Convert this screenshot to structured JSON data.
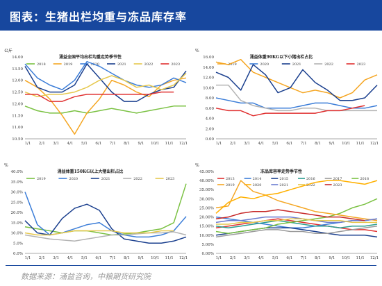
{
  "header": {
    "title": "图表：生猪出栏均重与冻品库存率"
  },
  "footer": {
    "source": "数据来源：涌益咨询，中粮期货研究院"
  },
  "chart_data": [
    {
      "type": "line",
      "title": "涌益全国平均出栏均重走势季节性",
      "unit": "公斤",
      "y_ticks": [
        "10.50",
        "11.00",
        "11.50",
        "12.00",
        "12.50",
        "13.00",
        "13.50",
        "14.00"
      ],
      "ylim": [
        105,
        140
      ],
      "x_labels": [
        "1/1",
        "2/1",
        "3/1",
        "4/1",
        "5/1",
        "6/1",
        "7/1",
        "8/1",
        "9/1",
        "10/1",
        "11/1",
        "12/1"
      ],
      "series": [
        {
          "name": "2018",
          "color": "#7ac142",
          "values": [
            119,
            117,
            116,
            116,
            117,
            116,
            117,
            118,
            117,
            116,
            117,
            118,
            119,
            119
          ]
        },
        {
          "name": "2019",
          "color": "#f5a623",
          "values": [
            130,
            127,
            122,
            115,
            107,
            116,
            122,
            130,
            128,
            125,
            123,
            128,
            130,
            131
          ]
        },
        {
          "name": "2020",
          "color": "#3b7dd8",
          "values": [
            137,
            131,
            128,
            126,
            130,
            138,
            136,
            133,
            130,
            128,
            127,
            128,
            131,
            129
          ]
        },
        {
          "name": "2021",
          "color": "#1a3f8e",
          "values": [
            136,
            127,
            125,
            125,
            128,
            137,
            131,
            125,
            121,
            121,
            124,
            126,
            127,
            134
          ]
        },
        {
          "name": "2022",
          "color": "#e6c84d",
          "values": [
            125,
            123,
            124,
            124,
            125,
            127,
            130,
            132,
            130,
            127,
            128,
            126,
            128,
            133
          ]
        },
        {
          "name": "2023",
          "color": "#e03030",
          "values": [
            124,
            124,
            121,
            121,
            123,
            124,
            124,
            124,
            124,
            124,
            124,
            125,
            125
          ]
        }
      ]
    },
    {
      "type": "line",
      "title": "涌益体重90KG以下小猪出栏占比",
      "unit": "%",
      "y_ticks": [
        "0.00",
        "2.00",
        "4.00",
        "6.00",
        "8.00",
        "10.00",
        "12.00",
        "14.00",
        "16.00"
      ],
      "ylim": [
        0,
        16
      ],
      "x_labels": [
        "1/1",
        "2/1",
        "3/1",
        "4/1",
        "5/1",
        "6/1",
        "7/1",
        "8/1",
        "9/1",
        "10/1",
        "11/1",
        "12/1"
      ],
      "series": [
        {
          "name": "2019",
          "color": "#f5a623",
          "values": [
            15.0,
            14.5,
            15.5,
            13.0,
            12.0,
            11.0,
            10.0,
            9.0,
            9.5,
            9.0,
            8.0,
            9.0,
            11.5,
            12.5
          ]
        },
        {
          "name": "2020",
          "color": "#3b7dd8",
          "values": [
            8.0,
            7.5,
            7.0,
            7.0,
            6.0,
            6.0,
            6.0,
            6.5,
            7.0,
            7.0,
            6.5,
            6.0,
            6.0,
            6.5
          ]
        },
        {
          "name": "2021",
          "color": "#1a3f8e",
          "values": [
            13.0,
            12.0,
            9.5,
            14.5,
            12.5,
            9.0,
            10.0,
            13.5,
            11.0,
            9.5,
            7.5,
            7.5,
            8.0,
            10.5
          ]
        },
        {
          "name": "2022",
          "color": "#b3b3b3",
          "values": [
            10.5,
            10.5,
            7.5,
            6.5,
            6.0,
            5.5,
            5.5,
            6.0,
            6.0,
            5.5,
            5.5,
            5.5,
            5.5,
            5.5
          ]
        },
        {
          "name": "2023",
          "color": "#e03030",
          "values": [
            6.0,
            5.5,
            5.5,
            4.5,
            5.0,
            5.0,
            5.0,
            5.0,
            5.0,
            5.5,
            5.5,
            6.0,
            6.5
          ]
        }
      ]
    },
    {
      "type": "line",
      "title": "涌益体重150KG以上大猪出栏占比",
      "unit": "%",
      "y_ticks": [
        "0.0%",
        "5.0%",
        "10.0%",
        "15.0%",
        "20.0%",
        "25.0%",
        "30.0%",
        "35.0%",
        "40.0%"
      ],
      "ylim": [
        0,
        40
      ],
      "x_labels": [
        "1/1",
        "2/1",
        "3/1",
        "4/1",
        "5/1",
        "6/1",
        "7/1",
        "8/1",
        "9/1",
        "10/1",
        "11/1",
        "12/1"
      ],
      "legend": [
        "2019",
        "2020",
        "2021",
        "2022",
        "2023"
      ],
      "series": [
        {
          "name": "2019",
          "color": "#7ac142",
          "values": [
            13.0,
            12.0,
            11.0,
            10.0,
            11.0,
            11.0,
            10.0,
            9.0,
            9.5,
            10.0,
            11.0,
            12.0,
            15.0,
            34.0
          ]
        },
        {
          "name": "2020",
          "color": "#3b7dd8",
          "values": [
            30.0,
            14.0,
            9.0,
            10.0,
            12.0,
            14.0,
            15.0,
            11.0,
            9.0,
            8.0,
            8.0,
            9.0,
            11.0,
            18.0
          ]
        },
        {
          "name": "2021",
          "color": "#1a3f8e",
          "values": [
            16.0,
            10.0,
            9.0,
            17.0,
            22.0,
            24.0,
            21.0,
            12.0,
            7.0,
            6.0,
            5.0,
            5.0,
            6.0,
            8.0
          ]
        },
        {
          "name": "2022",
          "color": "#b3b3b3",
          "values": [
            9.0,
            8.0,
            7.0,
            6.5,
            6.0,
            7.0,
            8.0,
            9.0,
            9.0,
            9.5,
            10.0,
            10.0,
            10.5,
            9.0
          ]
        },
        {
          "name": "2023",
          "color": "#e6c84d",
          "values": [
            10.0,
            9.0,
            9.0,
            10.0,
            11.0,
            11.0,
            11.0,
            11.0,
            10.0,
            10.0,
            10.0,
            11.0,
            11.0
          ]
        }
      ]
    },
    {
      "type": "line",
      "title": "冻品库容率走势季节性",
      "unit": "%",
      "y_ticks": [
        "0.00%",
        "5.00%",
        "10.00%",
        "15.00%",
        "20.00%",
        "25.00%",
        "30.00%",
        "35.00%",
        "40.00%",
        "45.00%"
      ],
      "ylim": [
        0,
        45
      ],
      "x_labels": [
        "1/1",
        "2/1",
        "3/1",
        "4/1",
        "5/1",
        "6/1",
        "7/1",
        "8/1",
        "9/1",
        "10/1",
        "11/1",
        "12/1"
      ],
      "legend": [
        "2013",
        "2014",
        "2015",
        "2016",
        "2017",
        "2018",
        "2019",
        "2020",
        "2021",
        "2022",
        "2023"
      ],
      "series": [
        {
          "name": "2013",
          "color": "#e03030",
          "values": [
            14,
            15,
            16,
            17,
            18,
            19,
            18,
            17,
            16,
            15,
            14,
            13,
            13,
            12
          ]
        },
        {
          "name": "2014",
          "color": "#3b7dd8",
          "values": [
            20,
            19,
            18,
            17,
            16,
            15,
            14,
            14,
            15,
            16,
            17,
            18,
            18,
            19
          ]
        },
        {
          "name": "2015",
          "color": "#1a3f8e",
          "values": [
            10,
            11,
            12,
            13,
            14,
            14,
            14,
            13,
            12,
            11,
            10,
            10,
            10,
            9
          ]
        },
        {
          "name": "2016",
          "color": "#2a9d8f",
          "values": [
            15,
            14,
            15,
            16,
            17,
            18,
            17,
            16,
            15,
            15,
            14,
            15,
            15,
            16
          ]
        },
        {
          "name": "2017",
          "color": "#9a9a9a",
          "values": [
            9,
            10,
            11,
            12,
            13,
            13,
            12,
            12,
            11,
            11,
            12,
            13,
            14,
            15
          ]
        },
        {
          "name": "2018",
          "color": "#7ac142",
          "values": [
            12,
            11,
            12,
            13,
            14,
            16,
            17,
            18,
            19,
            20,
            22,
            25,
            27,
            30
          ]
        },
        {
          "name": "2019",
          "color": "#f5a623",
          "values": [
            25,
            26,
            40,
            34,
            32,
            29,
            27,
            25,
            23,
            22,
            21,
            20,
            19,
            18
          ]
        },
        {
          "name": "2020",
          "color": "#ffb000",
          "values": [
            22,
            28,
            31,
            30,
            32,
            33,
            35,
            37,
            39,
            40,
            40,
            39,
            38,
            40
          ]
        },
        {
          "name": "2021",
          "color": "#6a7bd1",
          "values": [
            17,
            18,
            18,
            19,
            20,
            20,
            20,
            19,
            18,
            17,
            17,
            18,
            18,
            19
          ]
        },
        {
          "name": "2022",
          "color": "#e6c84d",
          "values": [
            16,
            16,
            17,
            17,
            18,
            18,
            19,
            19,
            18,
            18,
            18,
            17,
            17,
            17
          ]
        },
        {
          "name": "2023",
          "color": "#c62828",
          "values": [
            19,
            20,
            22,
            23,
            23,
            24,
            23,
            22,
            21,
            20,
            20,
            19,
            18
          ]
        }
      ]
    }
  ]
}
